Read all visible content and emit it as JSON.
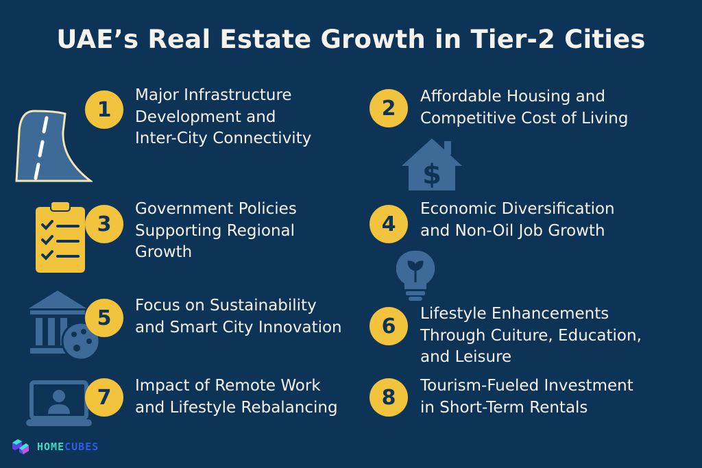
{
  "title": "UAE’s Real Estate Growth in Tier-2 Cities",
  "colors": {
    "background": "#0d3357",
    "accent": "#f2c33c",
    "icon_blue": "#3d6a96",
    "text": "#f4f1ea"
  },
  "items": [
    {
      "number": "1",
      "icon": "road-icon",
      "lines": [
        "Major Infrastructure",
        "Development and",
        "Inter-City Connectivity"
      ]
    },
    {
      "number": "2",
      "icon": "house-dollar-icon",
      "lines": [
        "Affordable Housing and",
        "Competitive Cost of Living"
      ]
    },
    {
      "number": "3",
      "icon": "clipboard-checklist-icon",
      "lines": [
        "Government Policies",
        "Supporting Regional",
        "Growth"
      ]
    },
    {
      "number": "4",
      "icon": "lightbulb-leaf-icon",
      "lines": [
        "Economic Diversification",
        "and Non-Oil Job Growth"
      ]
    },
    {
      "number": "5",
      "icon": "museum-palette-icon",
      "lines": [
        "Focus on Sustainability",
        "and Smart City Innovation"
      ]
    },
    {
      "number": "6",
      "icon": "",
      "lines": [
        "Lifestyle Enhancements",
        "Through Cuiture, Education,",
        "and Leisure"
      ]
    },
    {
      "number": "7",
      "icon": "laptop-user-icon",
      "lines": [
        "Impact of Remote Work",
        "and Lifestyle Rebalancing"
      ]
    },
    {
      "number": "8",
      "icon": "",
      "lines": [
        "Tourism-Fueled Investment",
        "in Short-Term Rentals"
      ]
    }
  ],
  "logo": {
    "part1": "HOME",
    "part2": "CUBES"
  }
}
